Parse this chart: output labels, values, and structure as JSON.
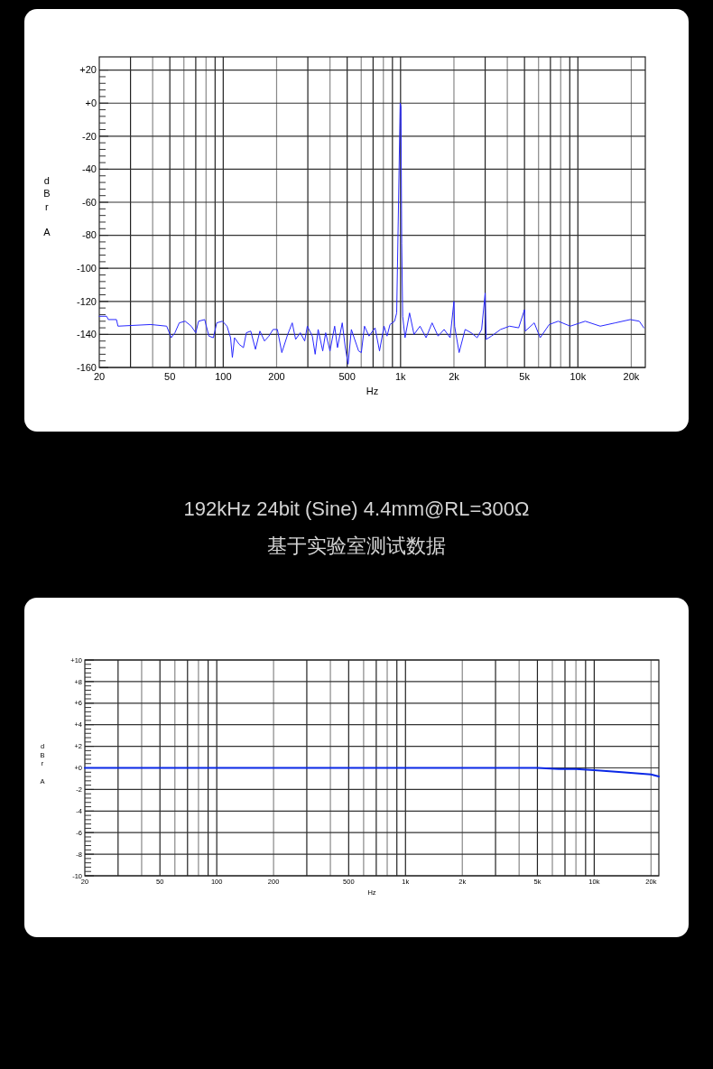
{
  "chart_data": [
    {
      "type": "line",
      "xlabel": "Hz",
      "ylabel": "dBr A",
      "log": "x",
      "grid": true,
      "marker": "none",
      "line_style": "solid",
      "xlim": [
        20,
        24000
      ],
      "ylim": [
        -160,
        28
      ],
      "xticks": [
        20,
        50,
        100,
        200,
        500,
        {
          "value": 1000,
          "label": "1k"
        },
        {
          "value": 2000,
          "label": "2k"
        },
        {
          "value": 5000,
          "label": "5k"
        },
        {
          "value": 10000,
          "label": "10k"
        },
        {
          "value": 20000,
          "label": "20k"
        }
      ],
      "yticks": [
        {
          "value": 20,
          "label": "+20"
        },
        {
          "value": 0,
          "label": "+0"
        },
        -20,
        -40,
        -60,
        -80,
        -100,
        -120,
        -140,
        -160
      ],
      "annotations": [
        "192kHz 24bit (Sine) 4.4mm@RL=300Ω",
        "基于实验室测试数据"
      ],
      "series": [
        {
          "color": "#2828ff",
          "x": [
            20,
            22,
            22.5,
            25,
            25.5,
            39,
            48,
            50.9,
            53.4,
            56.5,
            61,
            66,
            70,
            72.6,
            78.6,
            83,
            88,
            91.9,
            99,
            105,
            110,
            112.6,
            115.8,
            123,
            130,
            135,
            143,
            152,
            161,
            171,
            181,
            191,
            202,
            214,
            231,
            245,
            256,
            272,
            288,
            298,
            318,
            330,
            343,
            364,
            378,
            400,
            425,
            441,
            469,
            488,
            506,
            528,
            547,
            580,
            601,
            626,
            664,
            718,
            761,
            807,
            839,
            872,
            925,
            951,
            970,
            995,
            1005,
            1015,
            1028,
            1060,
            1124,
            1191,
            1288,
            1393,
            1506,
            1628,
            1761,
            1903,
            2000,
            2018,
            2139,
            2313,
            2500,
            2704,
            2865,
            3000,
            3040,
            3258,
            3664,
            4120,
            4634,
            5000,
            5049,
            5674,
            6128,
            6890,
            7748,
            9058,
            10998,
            13367,
            16250,
            19734,
            22200,
            23550
          ],
          "values": [
            -129,
            -129,
            -131,
            -131,
            -135,
            -134,
            -135,
            -142,
            -139,
            -133,
            -132,
            -135,
            -139,
            -132,
            -131,
            -141,
            -142,
            -133,
            -132,
            -135,
            -142,
            -154,
            -142,
            -146,
            -148,
            -139,
            -138,
            -149,
            -138,
            -144,
            -141,
            -137,
            -137,
            -151,
            -140,
            -133,
            -143,
            -139,
            -144,
            -135,
            -141,
            -152,
            -137,
            -150,
            -139,
            -150,
            -135,
            -148,
            -133,
            -148,
            -158,
            -137,
            -142,
            -150,
            -151,
            -135,
            -141,
            -136,
            -150,
            -135,
            -141,
            -134,
            -132,
            -127,
            -72,
            0,
            -2,
            -85,
            -129,
            -142,
            -127,
            -140,
            -135,
            -142,
            -133,
            -141,
            -137,
            -142,
            -120,
            -135,
            -151,
            -137,
            -139,
            -142,
            -137,
            -115,
            -143,
            -141,
            -137,
            -135,
            -136,
            -125,
            -138,
            -133,
            -142,
            -134,
            -132,
            -135,
            -132,
            -135,
            -133,
            -131,
            -132,
            -136
          ]
        }
      ]
    },
    {
      "type": "line",
      "xlabel": "Hz",
      "ylabel": "dBr A",
      "log": "x",
      "grid": true,
      "marker": "none",
      "line_style": "solid",
      "xlim": [
        20,
        22000
      ],
      "ylim": [
        -10,
        10
      ],
      "xticks": [
        20,
        50,
        100,
        200,
        500,
        {
          "value": 1000,
          "label": "1k"
        },
        {
          "value": 2000,
          "label": "2k"
        },
        {
          "value": 5000,
          "label": "5k"
        },
        {
          "value": 10000,
          "label": "10k"
        },
        {
          "value": 20000,
          "label": "20k"
        }
      ],
      "yticks": [
        {
          "value": 10,
          "label": "+10"
        },
        {
          "value": 8,
          "label": "+8"
        },
        {
          "value": 6,
          "label": "+6"
        },
        {
          "value": 4,
          "label": "+4"
        },
        {
          "value": 2,
          "label": "+2"
        },
        {
          "value": 0,
          "label": "+0"
        },
        -2,
        -4,
        -6,
        -8,
        -10
      ],
      "series": [
        {
          "color": "#0a28e6",
          "x": [
            20,
            5000,
            6500,
            8000,
            10000,
            14000,
            20000,
            22000
          ],
          "values": [
            0,
            0,
            -0.1,
            -0.1,
            -0.2,
            -0.4,
            -0.6,
            -0.8
          ]
        }
      ]
    }
  ]
}
